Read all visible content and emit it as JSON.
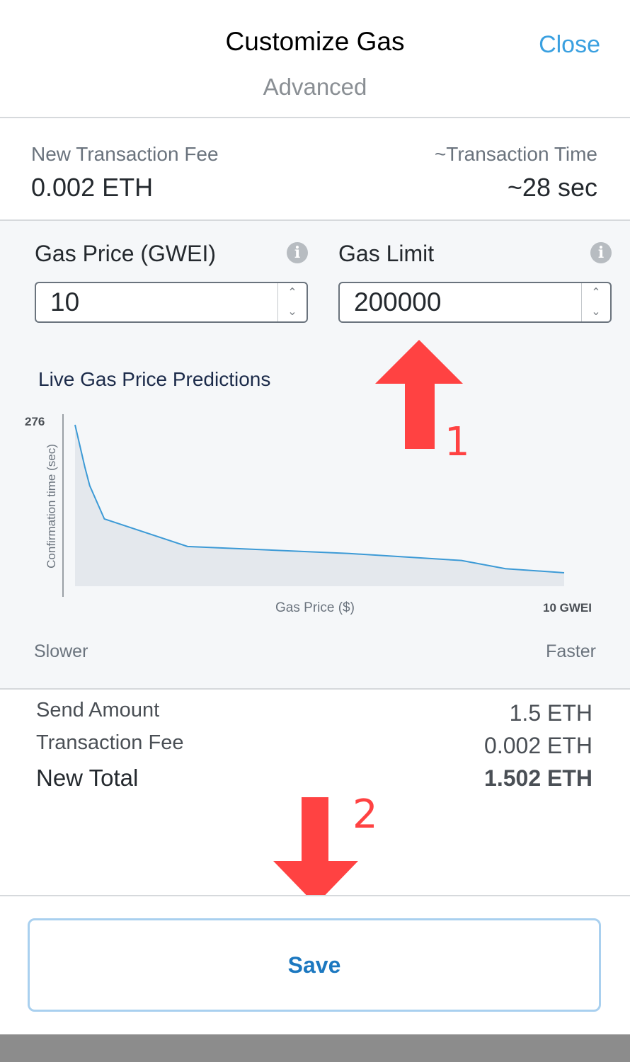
{
  "header": {
    "title": "Customize Gas",
    "subtitle": "Advanced",
    "close_label": "Close"
  },
  "summary": {
    "fee_label": "New Transaction Fee",
    "fee_value": "0.002 ETH",
    "time_label": "~Transaction Time",
    "time_value": "~28 sec"
  },
  "gas_price": {
    "label": "Gas Price (GWEI)",
    "value": "10",
    "info_icon": "info-icon"
  },
  "gas_limit": {
    "label": "Gas Limit",
    "value": "200000",
    "info_icon": "info-icon"
  },
  "predictions": {
    "title": "Live Gas Price Predictions",
    "speed_slow": "Slower",
    "speed_fast": "Faster"
  },
  "chart_data": {
    "type": "area",
    "ylabel": "Confirmation time (sec)",
    "xlabel": "Gas Price ($)",
    "y_tick_label": "276",
    "x_max_label": "10 GWEI",
    "ylim": [
      0,
      276
    ],
    "series": [
      {
        "points": [
          [
            0,
            276
          ],
          [
            0.02,
            204
          ],
          [
            0.03,
            172
          ],
          [
            0.06,
            115
          ],
          [
            0.23,
            68
          ],
          [
            0.56,
            56
          ],
          [
            0.79,
            44
          ],
          [
            0.88,
            30
          ],
          [
            1.0,
            23
          ]
        ]
      }
    ],
    "colors": {
      "line": "#3c9ad6",
      "fill": "#e4e8ed"
    }
  },
  "totals": {
    "rows": [
      {
        "label": "Send Amount",
        "value": "1.5 ETH"
      },
      {
        "label": "Transaction Fee",
        "value": "0.002 ETH"
      },
      {
        "label": "New Total",
        "value": "1.502 ETH"
      }
    ]
  },
  "footer": {
    "save_label": "Save"
  },
  "annotations": {
    "step1": "1",
    "step2": "2",
    "color": "#ff4242"
  }
}
